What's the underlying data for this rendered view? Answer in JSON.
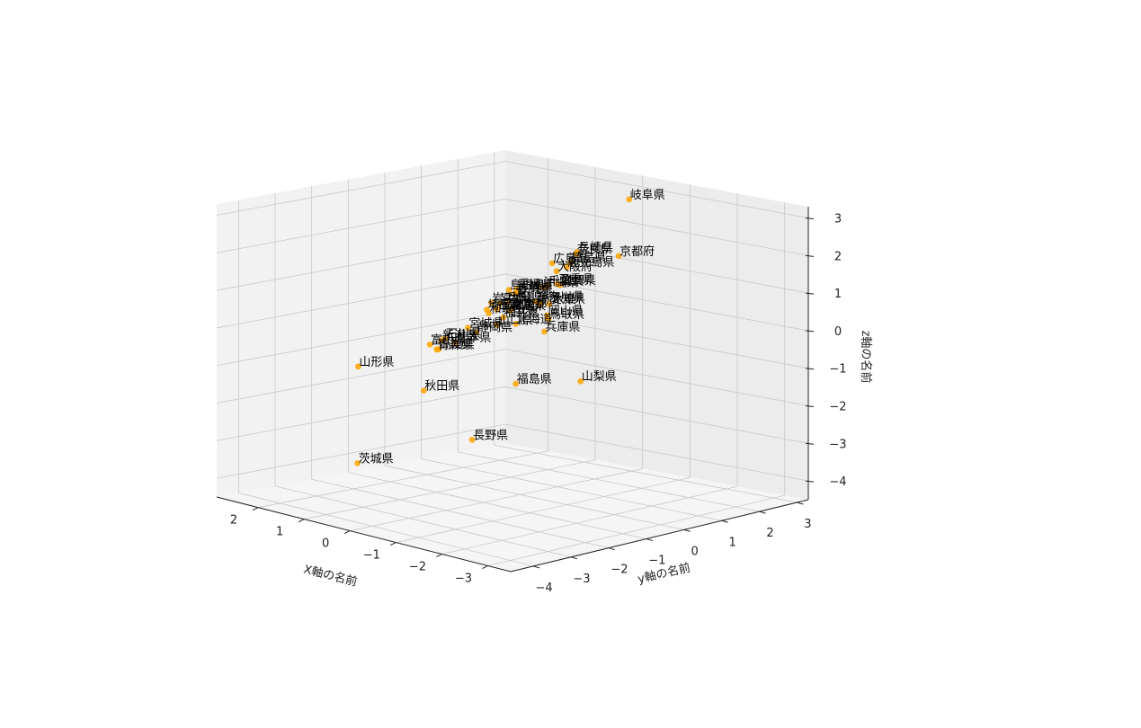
{
  "chart_data": {
    "type": "scatter",
    "xlabel": "X軸の名前",
    "ylabel": "y軸の名前",
    "zlabel": "z軸の名前",
    "xlim": [
      -3.5,
      2.9
    ],
    "ylim": [
      -4.6,
      3.3
    ],
    "zlim": [
      -4.5,
      3.3
    ],
    "x_ticks": [
      "−3",
      "−2",
      "−1",
      "0",
      "1",
      "2"
    ],
    "y_ticks": [
      "−4",
      "−3",
      "−2",
      "−1",
      "0",
      "1",
      "2",
      "3"
    ],
    "z_ticks": [
      "3",
      "2",
      "1",
      "0",
      "−1",
      "−2",
      "−3",
      "−4"
    ],
    "marker_color": "#ffa500",
    "grid": true,
    "points": [
      {
        "label": "北海道",
        "x": 1.9,
        "y": 2.3,
        "z": -0.9
      },
      {
        "label": "青森県",
        "x": 1.0,
        "y": -1.0,
        "z": -0.7
      },
      {
        "label": "岩手県",
        "x": 0.7,
        "y": 0.1,
        "z": 0.4
      },
      {
        "label": "宮城県",
        "x": 1.2,
        "y": 0.1,
        "z": -0.4
      },
      {
        "label": "秋田県",
        "x": 2.3,
        "y": 0.3,
        "z": -2.4
      },
      {
        "label": "山形県",
        "x": 1.5,
        "y": -2.5,
        "z": -1.0
      },
      {
        "label": "福島県",
        "x": -1.5,
        "y": -2.0,
        "z": -0.7
      },
      {
        "label": "茨城県",
        "x": 2.7,
        "y": -1.0,
        "z": -4.2
      },
      {
        "label": "栃木県",
        "x": 0.3,
        "y": 0.9,
        "z": 0.3
      },
      {
        "label": "群馬県",
        "x": 0.3,
        "y": 0.1,
        "z": 0.3
      },
      {
        "label": "埼玉県",
        "x": 0.4,
        "y": -0.4,
        "z": 0.4
      },
      {
        "label": "千葉県",
        "x": 1.0,
        "y": 2.0,
        "z": 0.4
      },
      {
        "label": "東京都",
        "x": 0.2,
        "y": 0.0,
        "z": 0.4
      },
      {
        "label": "神奈川県",
        "x": 0.3,
        "y": 0.8,
        "z": 0.4
      },
      {
        "label": "新潟県",
        "x": 2.0,
        "y": 0.4,
        "z": -1.0
      },
      {
        "label": "富山県",
        "x": 1.7,
        "y": -0.3,
        "z": -0.9
      },
      {
        "label": "石川県",
        "x": 0.9,
        "y": -0.9,
        "z": -0.4
      },
      {
        "label": "福井県",
        "x": 0.6,
        "y": 0.3,
        "z": 0.0
      },
      {
        "label": "山梨県",
        "x": -3.3,
        "y": -2.5,
        "z": 0.0
      },
      {
        "label": "長野県",
        "x": -1.2,
        "y": -2.8,
        "z": -2.1
      },
      {
        "label": "岐阜県",
        "x": -0.5,
        "y": 2.3,
        "z": 3.0
      },
      {
        "label": "静岡県",
        "x": 0.7,
        "y": -0.3,
        "z": -0.3
      },
      {
        "label": "愛知県",
        "x": 0.8,
        "y": 1.8,
        "z": 0.0
      },
      {
        "label": "三重県",
        "x": 0.0,
        "y": 1.0,
        "z": 0.9
      },
      {
        "label": "滋賀県",
        "x": 0.1,
        "y": 1.2,
        "z": 0.8
      },
      {
        "label": "京都府",
        "x": -0.2,
        "y": 2.4,
        "z": 1.4
      },
      {
        "label": "大阪府",
        "x": -0.3,
        "y": 0.6,
        "z": 1.4
      },
      {
        "label": "兵庫県",
        "x": 0.2,
        "y": 0.9,
        "z": -0.4
      },
      {
        "label": "奈良県",
        "x": -0.4,
        "y": 1.0,
        "z": 1.8
      },
      {
        "label": "和歌山県",
        "x": 0.2,
        "y": -0.6,
        "z": 0.4
      },
      {
        "label": "鳥取県",
        "x": 1.6,
        "y": 2.8,
        "z": -0.8
      },
      {
        "label": "島根県",
        "x": 0.4,
        "y": 0.2,
        "z": 0.8
      },
      {
        "label": "岡山県",
        "x": -2.5,
        "y": -2.4,
        "z": 1.5
      },
      {
        "label": "広島県",
        "x": -0.6,
        "y": 0.1,
        "z": 1.8
      },
      {
        "label": "山口県",
        "x": 0.1,
        "y": -0.5,
        "z": 0.1
      },
      {
        "label": "徳島県",
        "x": -0.2,
        "y": 1.1,
        "z": 1.5
      },
      {
        "label": "香川県",
        "x": -0.6,
        "y": -0.9,
        "z": 1.2
      },
      {
        "label": "愛媛県",
        "x": -0.4,
        "y": -0.6,
        "z": 1.2
      },
      {
        "label": "高知県",
        "x": 0.8,
        "y": -1.2,
        "z": -0.6
      },
      {
        "label": "福岡県",
        "x": 0.5,
        "y": 0.0,
        "z": 0.3
      },
      {
        "label": "佐賀県",
        "x": 0.0,
        "y": -0.1,
        "z": 0.9
      },
      {
        "label": "長崎県",
        "x": -0.5,
        "y": 0.9,
        "z": 1.9
      },
      {
        "label": "熊本県",
        "x": 0.6,
        "y": -1.0,
        "z": -0.4
      },
      {
        "label": "大分県",
        "x": -0.2,
        "y": -0.6,
        "z": 0.8
      },
      {
        "label": "宮崎県",
        "x": 0.2,
        "y": -0.3,
        "z": 0.6
      },
      {
        "label": "鹿児島県",
        "x": -0.2,
        "y": 1.0,
        "z": 1.4
      },
      {
        "label": "沖縄県",
        "x": 0.0,
        "y": 0.6,
        "z": 0.9
      }
    ]
  }
}
